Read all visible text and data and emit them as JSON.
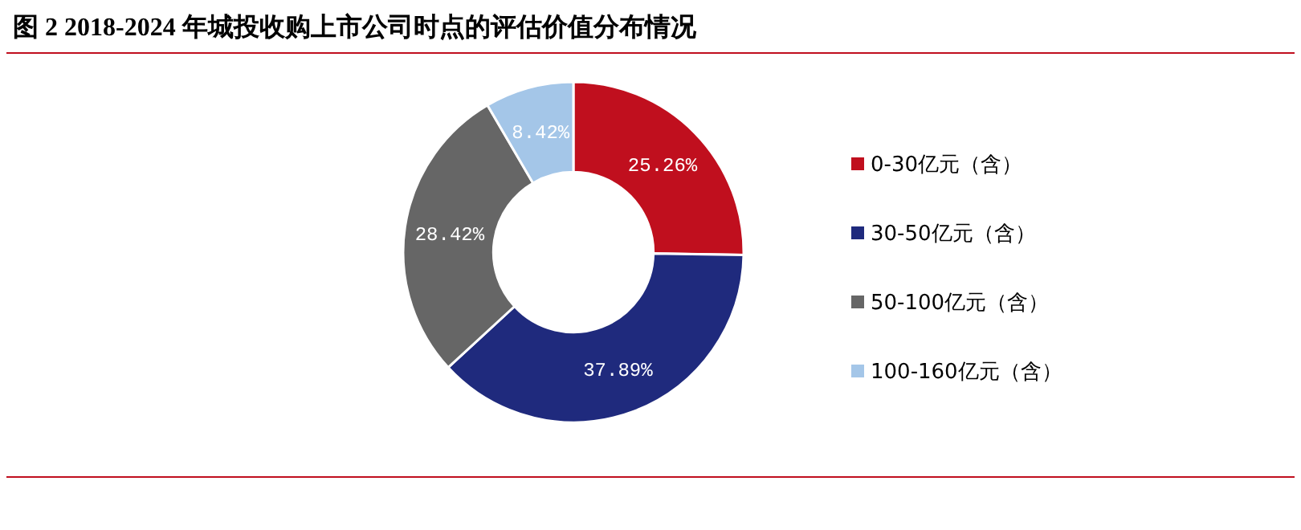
{
  "chart_data": {
    "type": "donut",
    "title": "图 2 2018-2024 年城投收购上市公司时点的评估价值分布情况",
    "categories": [
      "0-30亿元（含）",
      "30-50亿元（含）",
      "50-100亿元（含）",
      "100-160亿元（含）"
    ],
    "values": [
      25.26,
      37.89,
      28.42,
      8.42
    ],
    "colors": [
      "#c00f1e",
      "#1f2a7d",
      "#666666",
      "#a4c6e8"
    ],
    "value_labels": [
      "25.26%",
      "37.89%",
      "28.42%",
      "8.42%"
    ],
    "legend": "right"
  }
}
